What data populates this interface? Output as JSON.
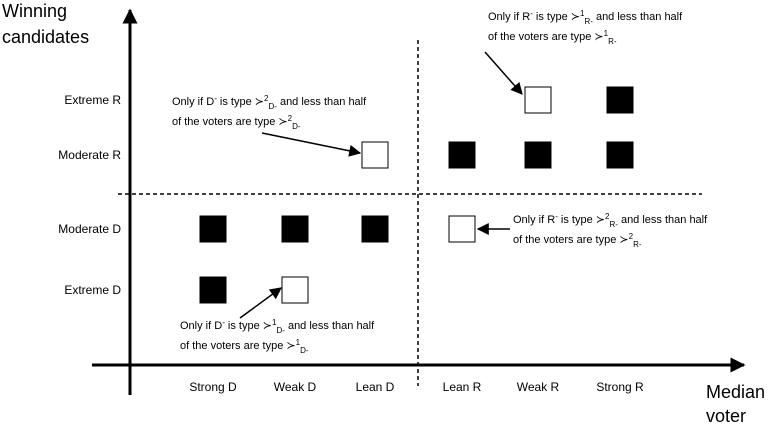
{
  "y_axis_label": [
    "Winning",
    "candidates"
  ],
  "x_axis_label": [
    "Median",
    "voter"
  ],
  "rows": [
    "Extreme R",
    "Moderate R",
    "Moderate D",
    "Extreme D"
  ],
  "columns": [
    "Strong D",
    "Weak D",
    "Lean D",
    "Lean R",
    "Weak R",
    "Strong R"
  ],
  "cells": [
    {
      "row": 0,
      "col": 4,
      "filled": false
    },
    {
      "row": 0,
      "col": 5,
      "filled": true
    },
    {
      "row": 1,
      "col": 2,
      "filled": false
    },
    {
      "row": 1,
      "col": 3,
      "filled": true
    },
    {
      "row": 1,
      "col": 4,
      "filled": true
    },
    {
      "row": 1,
      "col": 5,
      "filled": true
    },
    {
      "row": 2,
      "col": 0,
      "filled": true
    },
    {
      "row": 2,
      "col": 1,
      "filled": true
    },
    {
      "row": 2,
      "col": 2,
      "filled": true
    },
    {
      "row": 2,
      "col": 3,
      "filled": false
    },
    {
      "row": 3,
      "col": 0,
      "filled": true
    },
    {
      "row": 3,
      "col": 1,
      "filled": false
    }
  ],
  "annotations": [
    {
      "lines": [
        [
          {
            "t": "Only if R"
          },
          {
            "t": "-",
            "pos": "sup"
          },
          {
            "t": " is type ≻"
          },
          {
            "t": "1",
            "pos": "sup"
          },
          {
            "t": "R-",
            "pos": "sub"
          },
          {
            "t": " and less than half"
          }
        ],
        [
          {
            "t": "of the voters are type ≻"
          },
          {
            "t": "1",
            "pos": "sup"
          },
          {
            "t": "R-",
            "pos": "sub"
          }
        ]
      ]
    },
    {
      "lines": [
        [
          {
            "t": "Only if D"
          },
          {
            "t": "-",
            "pos": "sup"
          },
          {
            "t": " is type ≻"
          },
          {
            "t": "2",
            "pos": "sup"
          },
          {
            "t": "D-",
            "pos": "sub"
          },
          {
            "t": " and less than half"
          }
        ],
        [
          {
            "t": "of the voters are type ≻"
          },
          {
            "t": "2",
            "pos": "sup"
          },
          {
            "t": "D-",
            "pos": "sub"
          }
        ]
      ]
    },
    {
      "lines": [
        [
          {
            "t": "Only if R"
          },
          {
            "t": "-",
            "pos": "sup"
          },
          {
            "t": " is type ≻"
          },
          {
            "t": "2",
            "pos": "sup"
          },
          {
            "t": "R-",
            "pos": "sub"
          },
          {
            "t": " and less than half"
          }
        ],
        [
          {
            "t": "of the voters are type ≻"
          },
          {
            "t": "2",
            "pos": "sup"
          },
          {
            "t": "R-",
            "pos": "sub"
          }
        ]
      ]
    },
    {
      "lines": [
        [
          {
            "t": "Only if D"
          },
          {
            "t": "-",
            "pos": "sup"
          },
          {
            "t": " is type ≻"
          },
          {
            "t": "1",
            "pos": "sup"
          },
          {
            "t": "D-",
            "pos": "sub"
          },
          {
            "t": " and less than half"
          }
        ],
        [
          {
            "t": "of the voters are type ≻"
          },
          {
            "t": "1",
            "pos": "sup"
          },
          {
            "t": "D-",
            "pos": "sub"
          }
        ]
      ]
    }
  ]
}
